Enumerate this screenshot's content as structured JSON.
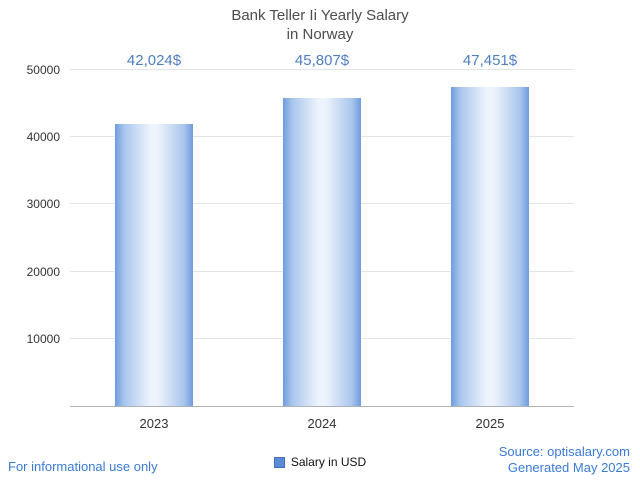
{
  "title": {
    "line1": "Bank Teller Ii Yearly Salary",
    "line2": "in Norway"
  },
  "chart_data": {
    "type": "bar",
    "title": "Bank Teller Ii Yearly Salary in Norway",
    "categories": [
      "2023",
      "2024",
      "2025"
    ],
    "values": [
      42024,
      45807,
      47451
    ],
    "value_labels": [
      "42,024$",
      "45,807$",
      "47,451$"
    ],
    "xlabel": "",
    "ylabel": "",
    "ylim": [
      0,
      50000
    ],
    "yticks": [
      10000,
      20000,
      30000,
      40000,
      50000
    ],
    "grid": true,
    "legend": "Salary in USD",
    "legend_position": "bottom"
  },
  "colors": {
    "bar_edge": "#6f9bdc",
    "bar_center": "#eef4fd",
    "value_label_text": "#4d7ec2",
    "link_text": "#3a7ad4",
    "title_text": "#4d4d4d"
  },
  "footer": {
    "disclaimer": "For informational use only",
    "source": "Source: optisalary.com",
    "generated": "Generated May 2025"
  }
}
